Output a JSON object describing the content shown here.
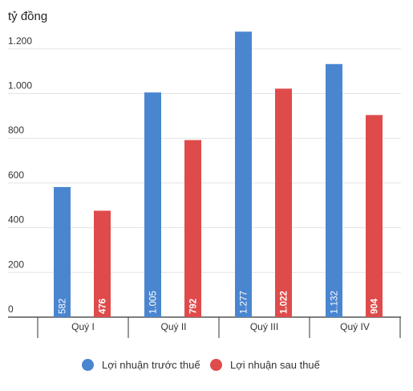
{
  "chart_data": {
    "type": "bar",
    "ylabel": "tỷ đồng",
    "ylim": [
      0,
      1300
    ],
    "yticks": [
      0,
      200,
      400,
      600,
      800,
      1000,
      1200
    ],
    "ytick_labels": [
      "0",
      "200",
      "400",
      "600",
      "800",
      "1.000",
      "1.200"
    ],
    "categories": [
      "Quý I",
      "Quý II",
      "Quý III",
      "Quý IV"
    ],
    "series": [
      {
        "name": "Lợi nhuận trước thuế",
        "color": "#4a86d0",
        "values": [
          582,
          1005,
          1277,
          1132
        ],
        "labels": [
          "582",
          "1.005",
          "1.277",
          "1.132"
        ]
      },
      {
        "name": "Lợi nhuận sau thuế",
        "color": "#df4b4b",
        "values": [
          476,
          792,
          1022,
          904
        ],
        "labels": [
          "476",
          "792",
          "1.022",
          "904"
        ]
      }
    ],
    "grid": true,
    "legend": "bottom"
  }
}
